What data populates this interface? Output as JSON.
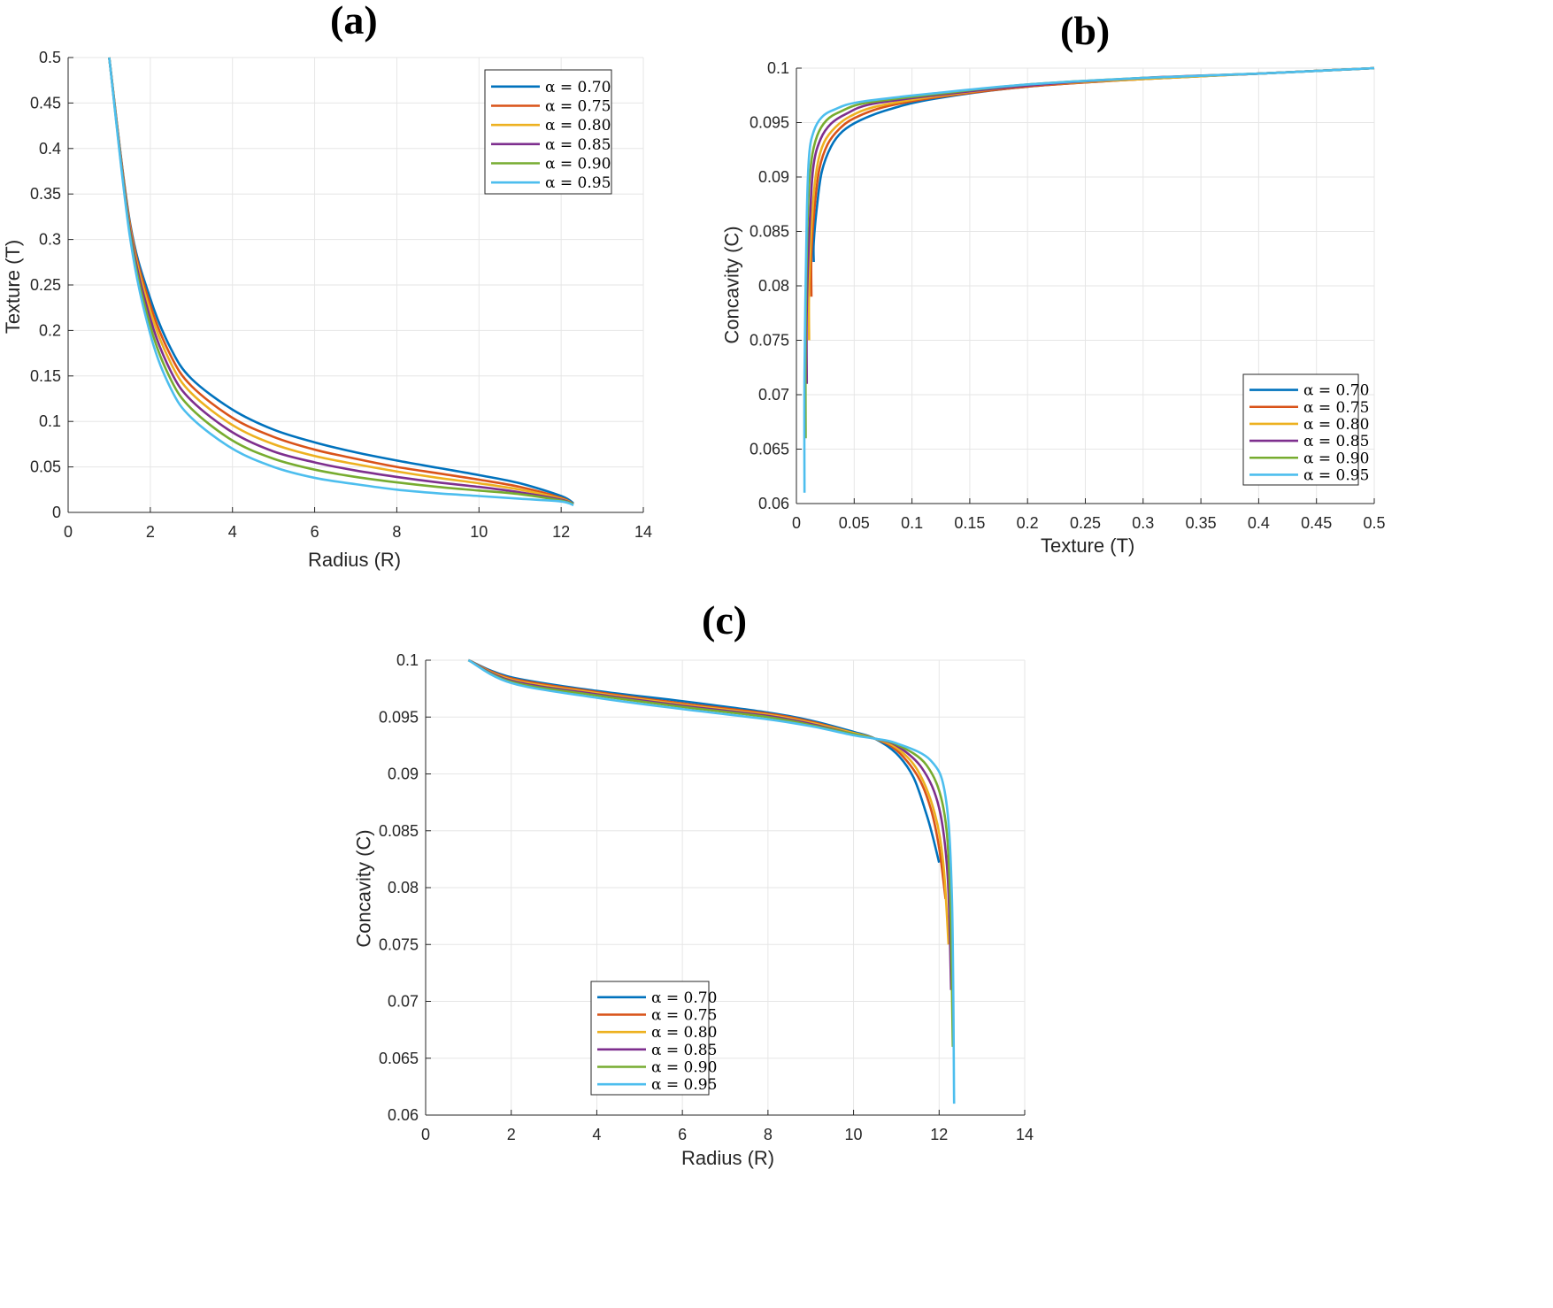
{
  "chart_data": [
    {
      "id": "a",
      "type": "line",
      "title": "(a)",
      "xlabel": "Radius (R)",
      "ylabel": "Texture (T)",
      "xlim": [
        0,
        14
      ],
      "ylim": [
        0,
        0.5
      ],
      "xticks": [
        "0",
        "2",
        "4",
        "6",
        "8",
        "10",
        "12",
        "14"
      ],
      "yticks": [
        "0",
        "0.05",
        "0.1",
        "0.15",
        "0.2",
        "0.25",
        "0.3",
        "0.35",
        "0.4",
        "0.45",
        "0.5"
      ],
      "grid": true,
      "legend_position": "top-right",
      "series": [
        {
          "name": "α = 0.70",
          "color": "#0072BD",
          "x": [
            1.0,
            1.5,
            2.0,
            2.5,
            3.0,
            4.0,
            5.0,
            6.0,
            7.0,
            8.0,
            9.0,
            10.0,
            11.0,
            12.0,
            12.3
          ],
          "y": [
            0.5,
            0.32,
            0.235,
            0.18,
            0.147,
            0.113,
            0.091,
            0.077,
            0.066,
            0.057,
            0.049,
            0.041,
            0.032,
            0.018,
            0.01
          ]
        },
        {
          "name": "α = 0.75",
          "color": "#D95319",
          "x": [
            1.0,
            1.5,
            2.0,
            2.5,
            3.0,
            4.0,
            5.0,
            6.0,
            7.0,
            8.0,
            9.0,
            10.0,
            11.0,
            12.0,
            12.3
          ],
          "y": [
            0.5,
            0.318,
            0.228,
            0.172,
            0.139,
            0.104,
            0.083,
            0.069,
            0.059,
            0.05,
            0.043,
            0.036,
            0.028,
            0.016,
            0.009
          ]
        },
        {
          "name": "α = 0.80",
          "color": "#EDB120",
          "x": [
            1.0,
            1.5,
            2.0,
            2.5,
            3.0,
            4.0,
            5.0,
            6.0,
            7.0,
            8.0,
            9.0,
            10.0,
            11.0,
            12.0,
            12.3
          ],
          "y": [
            0.5,
            0.315,
            0.221,
            0.164,
            0.131,
            0.096,
            0.075,
            0.062,
            0.053,
            0.045,
            0.038,
            0.032,
            0.025,
            0.015,
            0.009
          ]
        },
        {
          "name": "α = 0.85",
          "color": "#7E2F8E",
          "x": [
            1.0,
            1.5,
            2.0,
            2.5,
            3.0,
            4.0,
            5.0,
            6.0,
            7.0,
            8.0,
            9.0,
            10.0,
            11.0,
            12.0,
            12.3
          ],
          "y": [
            0.5,
            0.312,
            0.213,
            0.155,
            0.123,
            0.088,
            0.067,
            0.055,
            0.046,
            0.039,
            0.033,
            0.028,
            0.022,
            0.014,
            0.009
          ]
        },
        {
          "name": "α = 0.90",
          "color": "#77AC30",
          "x": [
            1.0,
            1.5,
            2.0,
            2.5,
            3.0,
            4.0,
            5.0,
            6.0,
            7.0,
            8.0,
            9.0,
            10.0,
            11.0,
            12.0,
            12.3
          ],
          "y": [
            0.5,
            0.308,
            0.205,
            0.146,
            0.114,
            0.079,
            0.059,
            0.047,
            0.039,
            0.033,
            0.028,
            0.024,
            0.02,
            0.013,
            0.009
          ]
        },
        {
          "name": "α = 0.95",
          "color": "#4DBEEE",
          "x": [
            1.0,
            1.5,
            2.0,
            2.5,
            3.0,
            4.0,
            5.0,
            6.0,
            7.0,
            8.0,
            9.0,
            10.0,
            11.0,
            12.0,
            12.3
          ],
          "y": [
            0.5,
            0.304,
            0.196,
            0.136,
            0.104,
            0.07,
            0.05,
            0.038,
            0.031,
            0.025,
            0.021,
            0.018,
            0.015,
            0.012,
            0.008
          ]
        }
      ]
    },
    {
      "id": "b",
      "type": "line",
      "title": "(b)",
      "xlabel": "Texture (T)",
      "ylabel": "Concavity (C)",
      "xlim": [
        0,
        0.5
      ],
      "ylim": [
        0.06,
        0.1
      ],
      "xticks": [
        "0",
        "0.05",
        "0.1",
        "0.15",
        "0.2",
        "0.25",
        "0.3",
        "0.35",
        "0.4",
        "0.45",
        "0.5"
      ],
      "yticks": [
        "0.06",
        "0.065",
        "0.07",
        "0.075",
        "0.08",
        "0.085",
        "0.09",
        "0.095",
        "0.1"
      ],
      "grid": true,
      "legend_position": "bottom-right",
      "series": [
        {
          "name": "α = 0.70",
          "color": "#0072BD",
          "x": [
            0.015,
            0.015,
            0.018,
            0.022,
            0.03,
            0.04,
            0.055,
            0.08,
            0.12,
            0.2,
            0.3,
            0.4,
            0.5
          ],
          "y": [
            0.0822,
            0.084,
            0.0875,
            0.0905,
            0.0928,
            0.0942,
            0.0952,
            0.0962,
            0.0972,
            0.0983,
            0.099,
            0.0995,
            0.1
          ]
        },
        {
          "name": "α = 0.75",
          "color": "#D95319",
          "x": [
            0.013,
            0.013,
            0.016,
            0.02,
            0.027,
            0.037,
            0.05,
            0.075,
            0.12,
            0.2,
            0.3,
            0.4,
            0.5
          ],
          "y": [
            0.079,
            0.083,
            0.0875,
            0.0908,
            0.093,
            0.0944,
            0.0954,
            0.0964,
            0.0973,
            0.0983,
            0.099,
            0.0995,
            0.1
          ]
        },
        {
          "name": "α = 0.80",
          "color": "#EDB120",
          "x": [
            0.011,
            0.011,
            0.014,
            0.018,
            0.024,
            0.034,
            0.047,
            0.07,
            0.12,
            0.2,
            0.3,
            0.4,
            0.5
          ],
          "y": [
            0.075,
            0.08,
            0.087,
            0.091,
            0.0932,
            0.0946,
            0.0956,
            0.0965,
            0.0974,
            0.0984,
            0.099,
            0.0995,
            0.1
          ]
        },
        {
          "name": "α = 0.85",
          "color": "#7E2F8E",
          "x": [
            0.009,
            0.009,
            0.012,
            0.015,
            0.021,
            0.03,
            0.043,
            0.065,
            0.12,
            0.2,
            0.3,
            0.4,
            0.5
          ],
          "y": [
            0.071,
            0.078,
            0.0868,
            0.0912,
            0.0935,
            0.0949,
            0.0958,
            0.0967,
            0.0975,
            0.0984,
            0.0991,
            0.0995,
            0.1
          ]
        },
        {
          "name": "α = 0.90",
          "color": "#77AC30",
          "x": [
            0.008,
            0.008,
            0.01,
            0.013,
            0.018,
            0.026,
            0.038,
            0.06,
            0.12,
            0.2,
            0.3,
            0.4,
            0.5
          ],
          "y": [
            0.066,
            0.076,
            0.087,
            0.0915,
            0.0938,
            0.0952,
            0.096,
            0.0968,
            0.0976,
            0.0985,
            0.0991,
            0.0995,
            0.1
          ]
        },
        {
          "name": "α = 0.95",
          "color": "#4DBEEE",
          "x": [
            0.007,
            0.007,
            0.009,
            0.011,
            0.015,
            0.022,
            0.033,
            0.055,
            0.12,
            0.2,
            0.3,
            0.4,
            0.5
          ],
          "y": [
            0.061,
            0.072,
            0.0865,
            0.092,
            0.0942,
            0.0955,
            0.0962,
            0.0969,
            0.0977,
            0.0985,
            0.0991,
            0.0995,
            0.1
          ]
        }
      ]
    },
    {
      "id": "c",
      "type": "line",
      "title": "(c)",
      "xlabel": "Radius (R)",
      "ylabel": "Concavity (C)",
      "xlim": [
        0,
        14
      ],
      "ylim": [
        0.06,
        0.1
      ],
      "xticks": [
        "0",
        "2",
        "4",
        "6",
        "8",
        "10",
        "12",
        "14"
      ],
      "yticks": [
        "0.06",
        "0.065",
        "0.07",
        "0.075",
        "0.08",
        "0.085",
        "0.09",
        "0.095",
        "0.1"
      ],
      "grid": true,
      "legend_position": "bottom-left",
      "series": [
        {
          "name": "α = 0.70",
          "color": "#0072BD",
          "x": [
            1.0,
            2.0,
            4.0,
            6.0,
            8.0,
            9.0,
            10.0,
            10.5,
            11.0,
            11.4,
            11.7,
            11.85,
            12.0
          ],
          "y": [
            0.1,
            0.0985,
            0.0973,
            0.0964,
            0.0954,
            0.0947,
            0.0937,
            0.0931,
            0.0918,
            0.0897,
            0.0865,
            0.0845,
            0.0822
          ]
        },
        {
          "name": "α = 0.75",
          "color": "#D95319",
          "x": [
            1.0,
            2.0,
            4.0,
            6.0,
            8.0,
            9.0,
            10.0,
            10.5,
            11.0,
            11.5,
            11.8,
            12.0,
            12.15
          ],
          "y": [
            0.1,
            0.0984,
            0.0972,
            0.0962,
            0.0953,
            0.0946,
            0.0936,
            0.0931,
            0.0921,
            0.0898,
            0.087,
            0.0835,
            0.079
          ]
        },
        {
          "name": "α = 0.80",
          "color": "#EDB120",
          "x": [
            1.0,
            2.0,
            4.0,
            6.0,
            8.0,
            9.0,
            10.0,
            10.5,
            11.0,
            11.5,
            11.9,
            12.1,
            12.22
          ],
          "y": [
            0.1,
            0.0983,
            0.0971,
            0.0961,
            0.0952,
            0.0945,
            0.0936,
            0.0931,
            0.0923,
            0.0903,
            0.0865,
            0.082,
            0.075
          ]
        },
        {
          "name": "α = 0.85",
          "color": "#7E2F8E",
          "x": [
            1.0,
            2.0,
            4.0,
            6.0,
            8.0,
            9.0,
            10.0,
            10.5,
            11.0,
            11.6,
            12.0,
            12.2,
            12.28
          ],
          "y": [
            0.1,
            0.0982,
            0.097,
            0.096,
            0.0951,
            0.0944,
            0.0935,
            0.0931,
            0.0925,
            0.0905,
            0.087,
            0.081,
            0.071
          ]
        },
        {
          "name": "α = 0.90",
          "color": "#77AC30",
          "x": [
            1.0,
            2.0,
            4.0,
            6.0,
            8.0,
            9.0,
            10.0,
            10.5,
            11.0,
            11.7,
            12.1,
            12.25,
            12.32
          ],
          "y": [
            0.1,
            0.0981,
            0.0969,
            0.0959,
            0.095,
            0.0943,
            0.0935,
            0.0931,
            0.0926,
            0.0908,
            0.087,
            0.08,
            0.066
          ]
        },
        {
          "name": "α = 0.95",
          "color": "#4DBEEE",
          "x": [
            1.0,
            2.0,
            4.0,
            6.0,
            8.0,
            9.0,
            10.0,
            10.5,
            11.0,
            11.8,
            12.15,
            12.3,
            12.35
          ],
          "y": [
            0.1,
            0.098,
            0.0967,
            0.0957,
            0.0948,
            0.0942,
            0.0934,
            0.0931,
            0.0927,
            0.0912,
            0.088,
            0.079,
            0.061
          ]
        }
      ]
    }
  ]
}
